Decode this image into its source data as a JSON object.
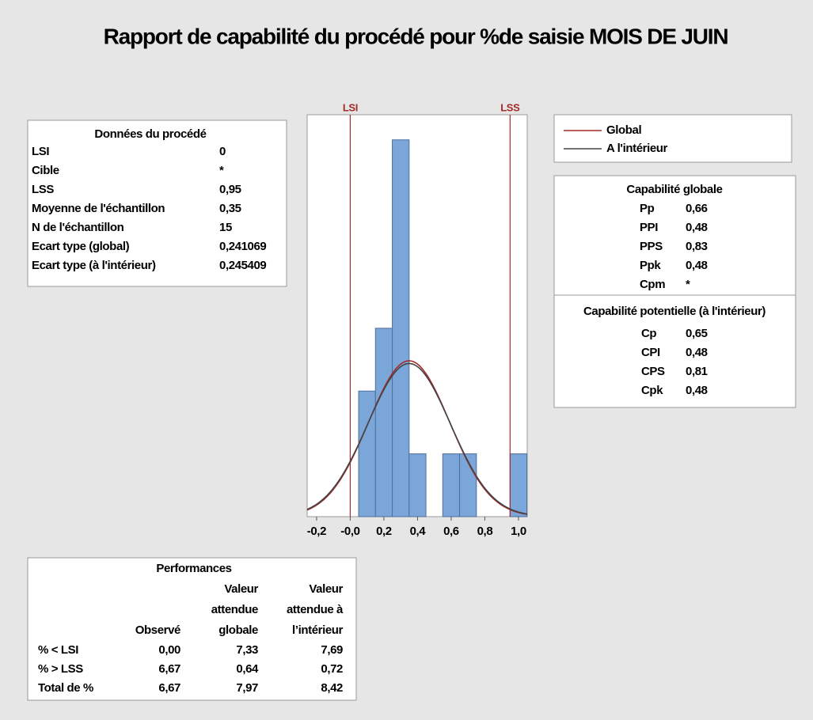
{
  "title": "Rapport de capabilité du procédé pour %de saisie MOIS DE JUIN",
  "process_data": {
    "title": "Données du procédé",
    "rows": [
      [
        "LSI",
        "0"
      ],
      [
        "Cible",
        "*"
      ],
      [
        "LSS",
        "0,95"
      ],
      [
        "Moyenne de l'échantillon",
        "0,35"
      ],
      [
        "N de l'échantillon",
        "15"
      ],
      [
        "Ecart type (global)",
        "0,241069"
      ],
      [
        "Ecart type (à l'intérieur)",
        "0,245409"
      ]
    ]
  },
  "chart_data": {
    "type": "histogram",
    "bins": [
      0.05,
      0.15,
      0.25,
      0.35,
      0.45,
      0.55,
      0.65,
      0.75,
      0.85,
      0.95,
      1.05
    ],
    "counts": [
      2,
      3,
      6,
      1,
      0,
      1,
      1,
      0,
      0,
      1
    ],
    "color": "#7ba6da",
    "xlim": [
      -0.256,
      1.052
    ],
    "xticks": [
      {
        "value": -0.2,
        "label": "-0,2"
      },
      {
        "value": 0,
        "label": "-0,0"
      },
      {
        "value": 0.2,
        "label": "0,2"
      },
      {
        "value": 0.4,
        "label": "0,4"
      },
      {
        "value": 0.6,
        "label": "0,6"
      },
      {
        "value": 0.8,
        "label": "0,8"
      },
      {
        "value": 1.0,
        "label": "1,0"
      }
    ],
    "ylim": [
      0,
      6.4
    ],
    "reference_lines": [
      {
        "label": "LSI",
        "value": 0
      },
      {
        "label": "LSS",
        "value": 0.95
      }
    ],
    "reference_color": "#a52a2a",
    "n": 15,
    "curves": [
      {
        "name": "Global",
        "color": "#a52a2a",
        "mean": 0.35,
        "sd": 0.241069
      },
      {
        "name": "A l'intérieur",
        "color": "#444444",
        "mean": 0.35,
        "sd": 0.245409
      }
    ]
  },
  "overall_capability": {
    "title": "Capabilité globale",
    "rows": [
      [
        "Pp",
        "0,66"
      ],
      [
        "PPI",
        "0,48"
      ],
      [
        "PPS",
        "0,83"
      ],
      [
        "Ppk",
        "0,48"
      ],
      [
        "Cpm",
        "*"
      ]
    ]
  },
  "potential_capability": {
    "title": "Capabilité potentielle (à l'intérieur)",
    "rows": [
      [
        "Cp",
        "0,65"
      ],
      [
        "CPI",
        "0,48"
      ],
      [
        "CPS",
        "0,81"
      ],
      [
        "Cpk",
        "0,48"
      ]
    ]
  },
  "performance": {
    "title": "Performances",
    "columns": [
      [
        "Observé"
      ],
      [
        "Valeur",
        "attendue",
        "globale"
      ],
      [
        "Valeur",
        "attendue à",
        "l’intérieur"
      ]
    ],
    "rows": [
      [
        "% < LSI",
        "0,00",
        "7,33",
        "7,69"
      ],
      [
        "% > LSS",
        "6,67",
        "0,64",
        "0,72"
      ],
      [
        "Total de %",
        "6,67",
        "7,97",
        "8,42"
      ]
    ]
  }
}
